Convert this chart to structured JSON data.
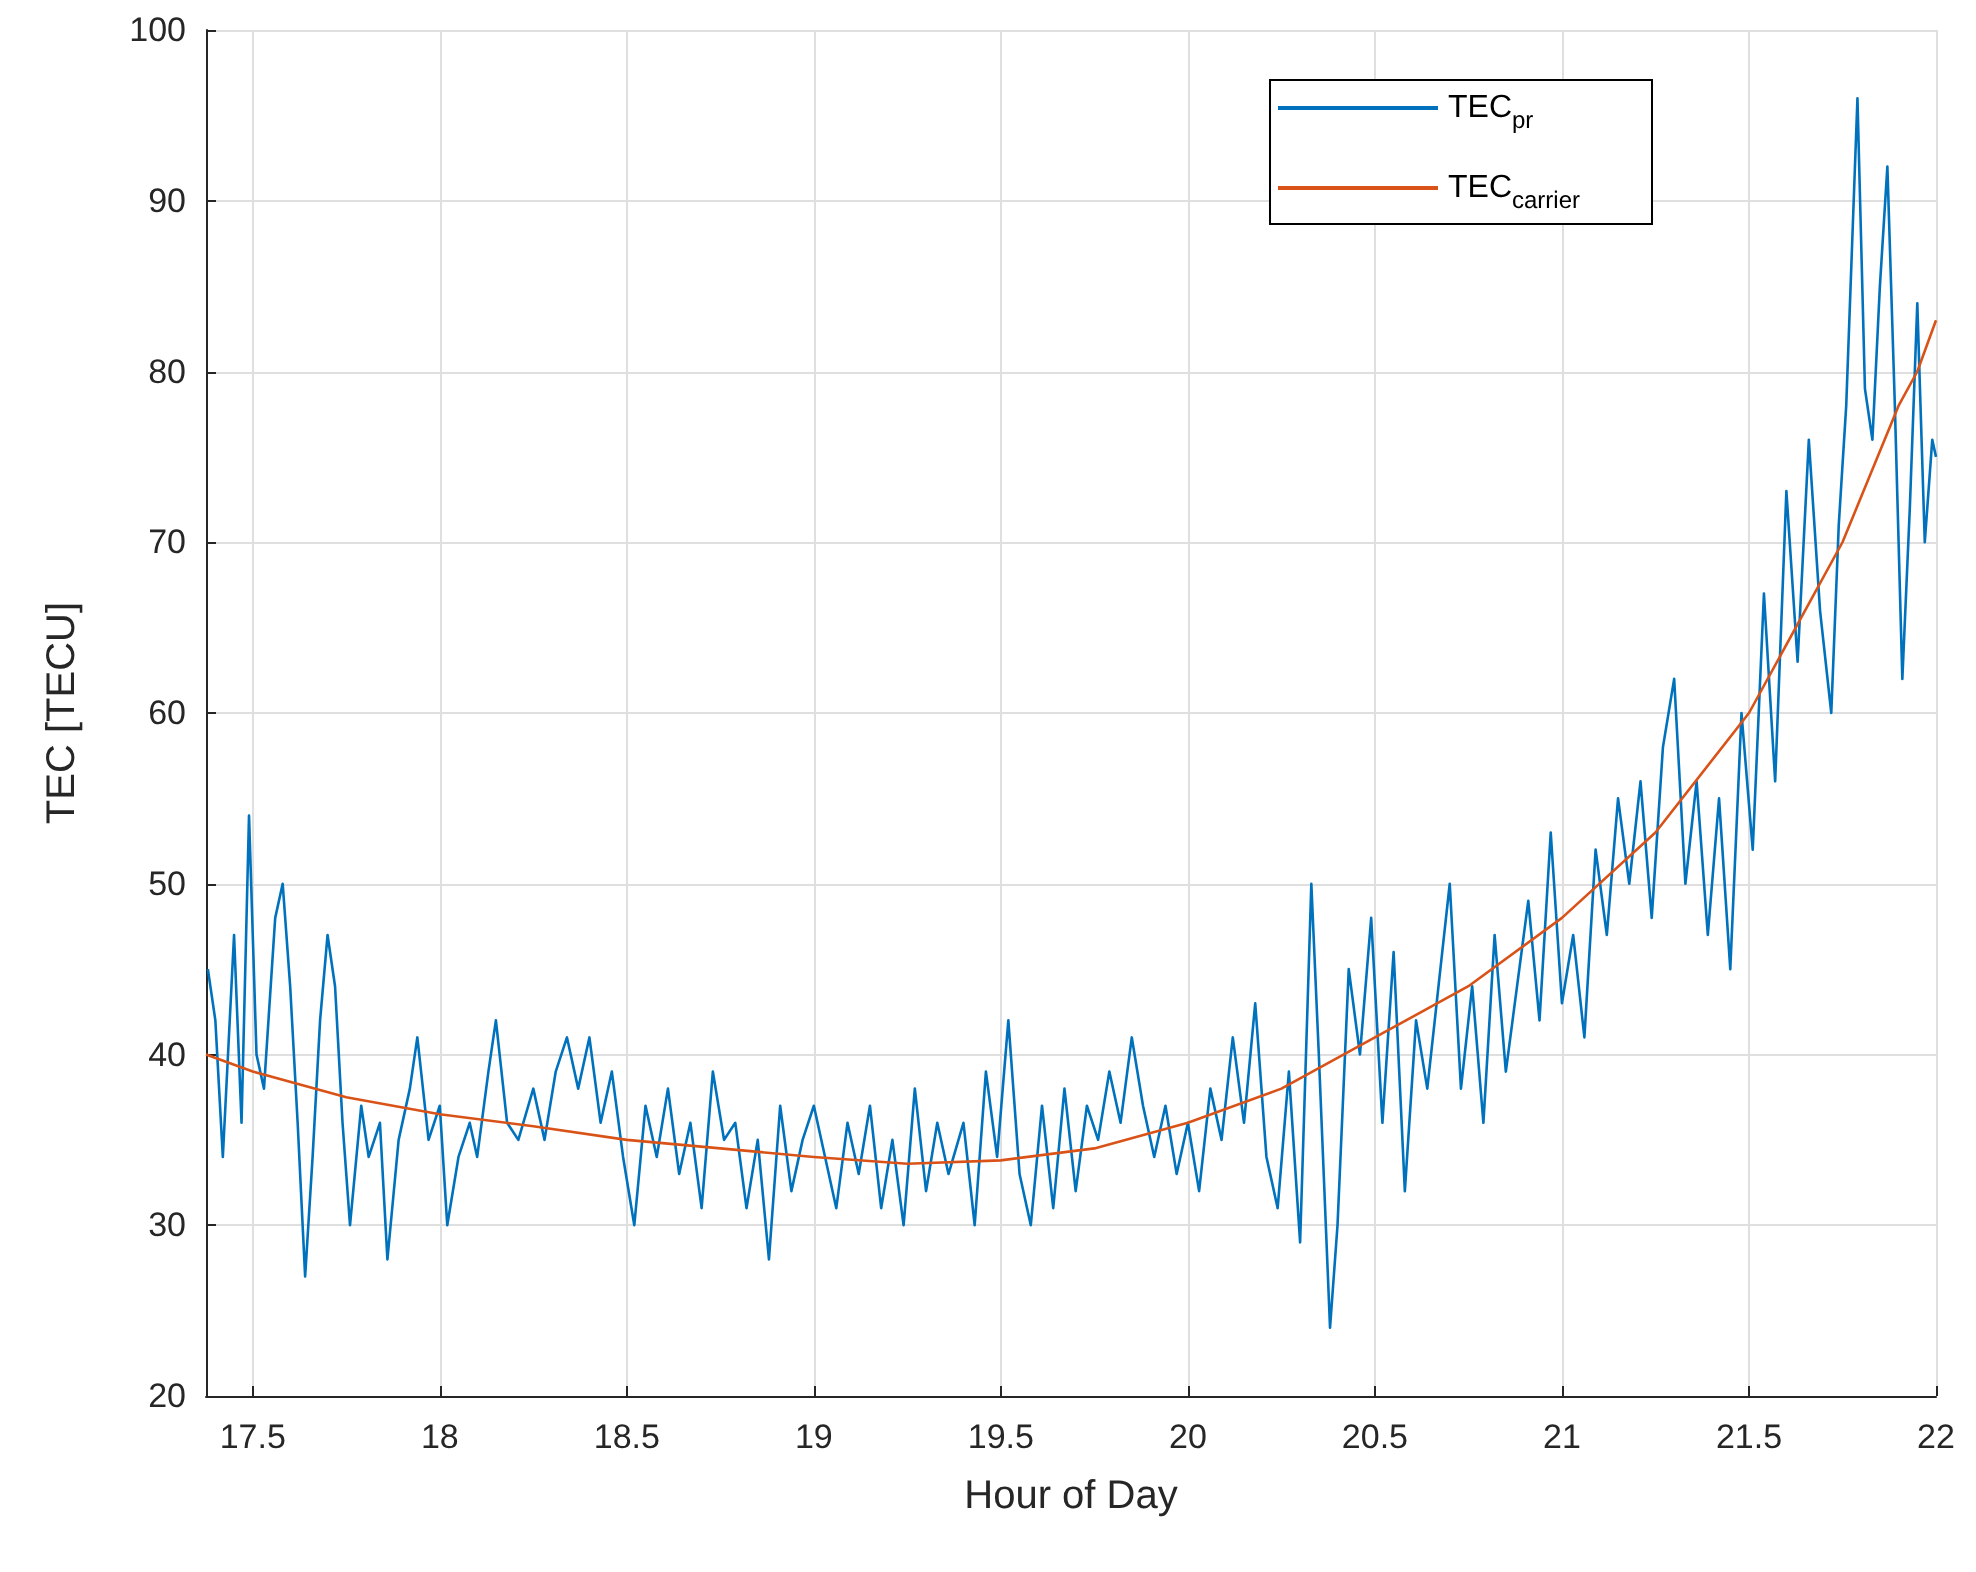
{
  "chart_data": {
    "type": "line",
    "xlabel": "Hour of Day",
    "ylabel": "TEC [TECU]",
    "xlim": [
      17.375,
      22
    ],
    "xticks": [
      17.5,
      18,
      18.5,
      19,
      19.5,
      20,
      20.5,
      21,
      21.5,
      22
    ],
    "ylim": [
      20,
      100
    ],
    "yticks": [
      20,
      30,
      40,
      50,
      60,
      70,
      80,
      90,
      100
    ],
    "grid": true,
    "legend": "top right",
    "marker": "none",
    "line_style": "solid",
    "series": [
      {
        "name": "TEC$_{pr}$",
        "color": "#0072bd",
        "x": [
          17.38,
          17.4,
          17.42,
          17.45,
          17.47,
          17.49,
          17.51,
          17.53,
          17.56,
          17.58,
          17.6,
          17.62,
          17.64,
          17.66,
          17.68,
          17.7,
          17.72,
          17.74,
          17.76,
          17.79,
          17.81,
          17.84,
          17.86,
          17.89,
          17.92,
          17.94,
          17.97,
          18,
          18.02,
          18.05,
          18.08,
          18.1,
          18.13,
          18.15,
          18.18,
          18.21,
          18.25,
          18.28,
          18.31,
          18.34,
          18.37,
          18.4,
          18.43,
          18.46,
          18.49,
          18.52,
          18.55,
          18.58,
          18.61,
          18.64,
          18.67,
          18.7,
          18.73,
          18.76,
          18.79,
          18.82,
          18.85,
          18.88,
          18.91,
          18.94,
          18.97,
          19,
          19.03,
          19.06,
          19.09,
          19.12,
          19.15,
          19.18,
          19.21,
          19.24,
          19.27,
          19.3,
          19.33,
          19.36,
          19.4,
          19.43,
          19.46,
          19.49,
          19.52,
          19.55,
          19.58,
          19.61,
          19.64,
          19.67,
          19.7,
          19.73,
          19.76,
          19.79,
          19.82,
          19.85,
          19.88,
          19.91,
          19.94,
          19.97,
          20,
          20.03,
          20.06,
          20.09,
          20.12,
          20.15,
          20.18,
          20.21,
          20.24,
          20.27,
          20.3,
          20.33,
          20.35,
          20.38,
          20.4,
          20.43,
          20.46,
          20.49,
          20.52,
          20.55,
          20.58,
          20.61,
          20.64,
          20.67,
          20.7,
          20.73,
          20.76,
          20.79,
          20.82,
          20.85,
          20.88,
          20.91,
          20.94,
          20.97,
          21,
          21.03,
          21.06,
          21.09,
          21.12,
          21.15,
          21.18,
          21.21,
          21.24,
          21.27,
          21.3,
          21.33,
          21.36,
          21.39,
          21.42,
          21.45,
          21.48,
          21.51,
          21.54,
          21.57,
          21.6,
          21.63,
          21.66,
          21.69,
          21.72,
          21.74,
          21.76,
          21.79,
          21.81,
          21.83,
          21.85,
          21.87,
          21.89,
          21.91,
          21.93,
          21.95,
          21.97,
          21.99,
          22
        ],
        "values": [
          45,
          42,
          34,
          47,
          36,
          54,
          40,
          38,
          48,
          50,
          44,
          36,
          27,
          34,
          42,
          47,
          44,
          36,
          30,
          37,
          34,
          36,
          28,
          35,
          38,
          41,
          35,
          37,
          30,
          34,
          36,
          34,
          39,
          42,
          36,
          35,
          38,
          35,
          39,
          41,
          38,
          41,
          36,
          39,
          34,
          30,
          37,
          34,
          38,
          33,
          36,
          31,
          39,
          35,
          36,
          31,
          35,
          28,
          37,
          32,
          35,
          37,
          34,
          31,
          36,
          33,
          37,
          31,
          35,
          30,
          38,
          32,
          36,
          33,
          36,
          30,
          39,
          34,
          42,
          33,
          30,
          37,
          31,
          38,
          32,
          37,
          35,
          39,
          36,
          41,
          37,
          34,
          37,
          33,
          36,
          32,
          38,
          35,
          41,
          36,
          43,
          34,
          31,
          39,
          29,
          50,
          40,
          24,
          30,
          45,
          40,
          48,
          36,
          46,
          32,
          42,
          38,
          44,
          50,
          38,
          44,
          36,
          47,
          39,
          44,
          49,
          42,
          53,
          43,
          47,
          41,
          52,
          47,
          55,
          50,
          56,
          48,
          58,
          62,
          50,
          56,
          47,
          55,
          45,
          60,
          52,
          67,
          56,
          73,
          63,
          76,
          66,
          60,
          71,
          78,
          96,
          79,
          76,
          85,
          92,
          78,
          62,
          72,
          84,
          70,
          76,
          75
        ]
      },
      {
        "name": "TEC$_{carrier}$",
        "color": "#d95319",
        "x": [
          17.375,
          17.5,
          17.75,
          18,
          18.25,
          18.5,
          18.75,
          19,
          19.25,
          19.5,
          19.75,
          20,
          20.25,
          20.5,
          20.75,
          21,
          21.25,
          21.5,
          21.75,
          21.9,
          21.95,
          22
        ],
        "values": [
          40,
          39,
          37.5,
          36.5,
          35.8,
          35,
          34.5,
          34,
          33.6,
          33.8,
          34.5,
          36,
          38,
          41,
          44,
          48,
          53,
          60,
          70,
          78,
          80,
          83
        ]
      }
    ]
  }
}
